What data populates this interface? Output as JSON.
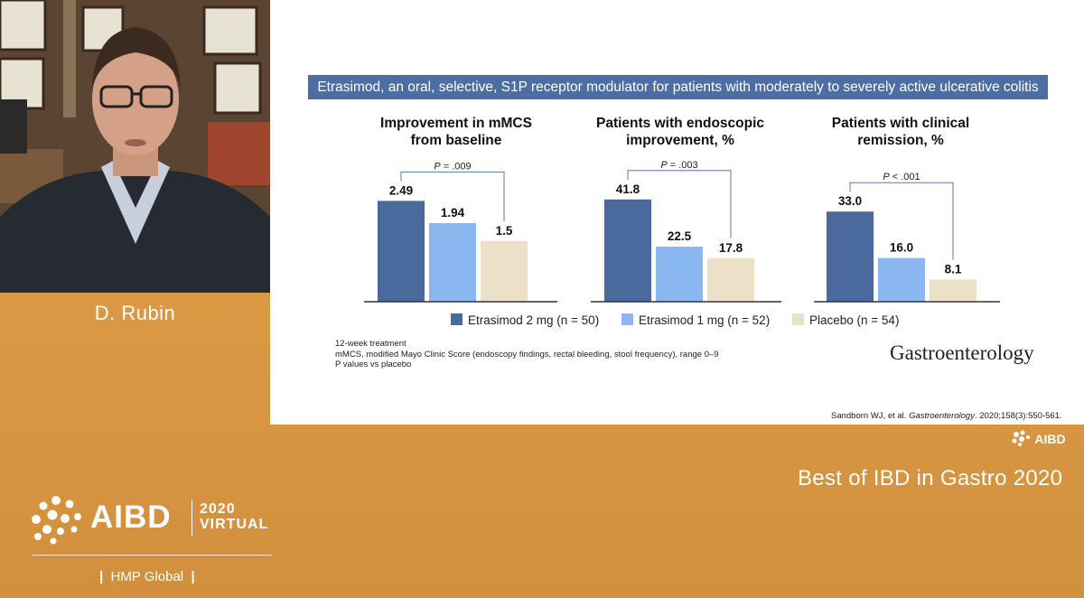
{
  "speaker": {
    "name": "D. Rubin"
  },
  "slide": {
    "title": "Etrasimod, an oral, selective, S1P receptor modulator for patients with moderately to severely active ulcerative colitis",
    "footnotes": [
      "12-week treatment",
      "mMCS, modified Mayo Clinic Score (endoscopy findings, rectal bleeding, stool frequency), range 0–9",
      "P values vs placebo"
    ],
    "journal_logo": "Gastroenterology",
    "citation": {
      "prefix": "Sandborn WJ, et al. ",
      "journal": "Gastroenterology",
      "suffix": ". 2020;158(3):550-561."
    }
  },
  "colors": {
    "etrasimod_2mg": "#4a6a9e",
    "etrasimod_1mg": "#8ab7f0",
    "placebo": "#ede0c8",
    "title_bar": "#4c6ea4"
  },
  "legend": [
    {
      "label": "Etrasimod 2 mg (n = 50)",
      "color": "#4a6a9e"
    },
    {
      "label": "Etrasimod 1 mg (n = 52)",
      "color": "#8ab7f0"
    },
    {
      "label": "Placebo (n = 54)",
      "color": "#ede0c8"
    }
  ],
  "chart_data": [
    {
      "type": "bar",
      "title": "Improvement in mMCS from baseline",
      "title_lines": [
        "Improvement in mMCS",
        "from baseline"
      ],
      "categories": [
        "Etrasimod 2 mg (n = 50)",
        "Etrasimod 1 mg (n = 52)",
        "Placebo (n = 54)"
      ],
      "values": [
        2.49,
        1.94,
        1.5
      ],
      "value_labels": [
        "2.49",
        "1.94",
        "1.5"
      ],
      "p_value": {
        "italic": "P",
        "text": " = .009"
      },
      "ylim": [
        0,
        2.9
      ]
    },
    {
      "type": "bar",
      "title": "Patients with endoscopic improvement, %",
      "title_lines": [
        "Patients with endoscopic",
        "improvement, %"
      ],
      "categories": [
        "Etrasimod 2 mg (n = 50)",
        "Etrasimod 1 mg (n = 52)",
        "Placebo (n = 54)"
      ],
      "values": [
        41.8,
        22.5,
        17.8
      ],
      "value_labels": [
        "41.8",
        "22.5",
        "17.8"
      ],
      "p_value": {
        "italic": "P",
        "text": " = .003"
      },
      "ylim": [
        0,
        48
      ]
    },
    {
      "type": "bar",
      "title": "Patients with clinical remission, %",
      "title_lines": [
        "Patients with clinical",
        "remission, %"
      ],
      "categories": [
        "Etrasimod 2 mg (n = 50)",
        "Etrasimod 1 mg (n = 52)",
        "Placebo (n = 54)"
      ],
      "values": [
        33.0,
        16.0,
        8.1
      ],
      "value_labels": [
        "33.0",
        "16.0",
        "8.1"
      ],
      "p_value": {
        "italic": "P",
        "text": " < .001"
      },
      "ylim": [
        0,
        43
      ]
    }
  ],
  "branding": {
    "small_logo": "AIBD",
    "event_title": "Best of IBD in Gastro 2020",
    "logo_word": "AIBD",
    "year_line1": "2020",
    "year_line2": "VIRTUAL",
    "publisher": "HMP Global"
  }
}
